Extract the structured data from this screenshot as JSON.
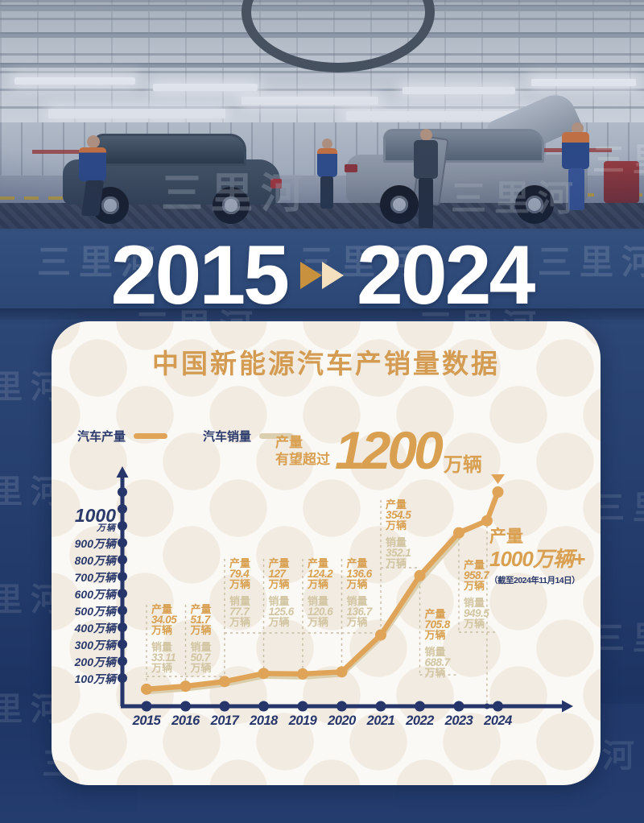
{
  "watermark": {
    "text": "三里河"
  },
  "headline": {
    "from": "2015",
    "to": "2024"
  },
  "card": {
    "title": "中国新能源汽车产销量数据",
    "legend": [
      {
        "label": "汽车产量",
        "color": "#dfa458"
      },
      {
        "label": "汽车销量",
        "color": "#dccfaf"
      }
    ],
    "projection": {
      "line1": "产量",
      "line2": "有望超过",
      "value": "1200",
      "unit": "万辆"
    },
    "latest": {
      "label": "产量",
      "value": "1000万辆+",
      "note": "（截至2024年11月14日）"
    }
  },
  "chart_data": {
    "type": "line",
    "x": [
      "2015",
      "2016",
      "2017",
      "2018",
      "2019",
      "2020",
      "2021",
      "2022",
      "2023",
      "2024"
    ],
    "series": [
      {
        "name": "汽车产量",
        "color": "#dfa458",
        "values": [
          34.05,
          51.7,
          79.4,
          127,
          124.2,
          136.6,
          354.5,
          705.8,
          958.7,
          null
        ]
      },
      {
        "name": "汽车销量",
        "color": "#dbceac",
        "values": [
          33.11,
          50.7,
          77.7,
          125.6,
          120.6,
          136.7,
          352.1,
          688.7,
          949.5,
          null
        ]
      }
    ],
    "labels": {
      "prod_prefix": "产量",
      "sales_prefix": "销量",
      "unit": "万辆"
    },
    "point_labels": [
      {
        "year": "2015",
        "prod": "34.05",
        "sales": "33.11"
      },
      {
        "year": "2016",
        "prod": "51.7",
        "sales": "50.7"
      },
      {
        "year": "2017",
        "prod": "79.4",
        "sales": "77.7"
      },
      {
        "year": "2018",
        "prod": "127",
        "sales": "125.6"
      },
      {
        "year": "2019",
        "prod": "124.2",
        "sales": "120.6"
      },
      {
        "year": "2020",
        "prod": "136.6",
        "sales": "136.7"
      },
      {
        "year": "2021",
        "prod": "354.5",
        "sales": "352.1"
      },
      {
        "year": "2022",
        "prod": "705.8",
        "sales": "688.7"
      },
      {
        "year": "2023",
        "prod": "958.7",
        "sales": "949.5"
      }
    ],
    "extra_points": {
      "production_2024_nov14": 1000,
      "production_2024_nov14_plot": 1030,
      "production_2024_projection": 1200
    },
    "yticks": [
      100,
      200,
      300,
      400,
      500,
      600,
      700,
      800,
      900,
      1000
    ],
    "ytick_unit": "万辆",
    "ylim": [
      0,
      1250
    ],
    "grid": false,
    "legend_position": "top-left",
    "axis_color": "#26356a"
  }
}
